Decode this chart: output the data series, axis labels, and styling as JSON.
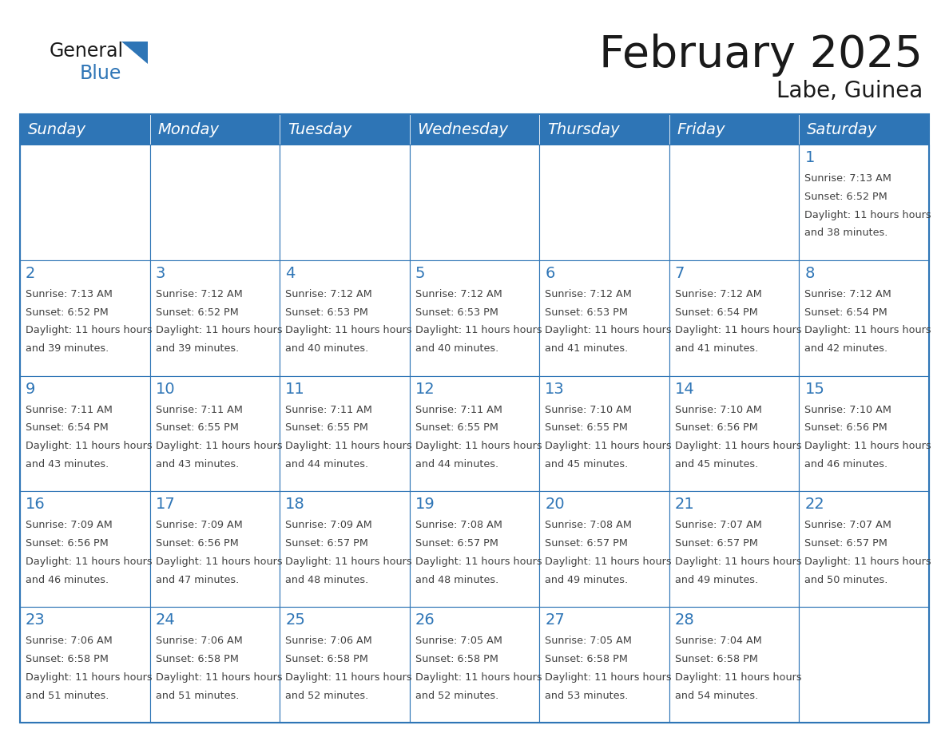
{
  "title": "February 2025",
  "subtitle": "Labe, Guinea",
  "days_of_week": [
    "Sunday",
    "Monday",
    "Tuesday",
    "Wednesday",
    "Thursday",
    "Friday",
    "Saturday"
  ],
  "header_bg": "#2E75B6",
  "header_text": "#FFFFFF",
  "cell_bg": "#FFFFFF",
  "border_color": "#2E75B6",
  "day_number_color": "#2E75B6",
  "detail_color": "#404040",
  "title_color": "#1a1a1a",
  "logo_text_color": "#1a1a1a",
  "logo_blue_color": "#2E75B6",
  "calendar_data": [
    [
      null,
      null,
      null,
      null,
      null,
      null,
      {
        "day": 1,
        "sunrise": "7:13 AM",
        "sunset": "6:52 PM",
        "daylight": "11 hours and 38 minutes"
      }
    ],
    [
      {
        "day": 2,
        "sunrise": "7:13 AM",
        "sunset": "6:52 PM",
        "daylight": "11 hours and 39 minutes"
      },
      {
        "day": 3,
        "sunrise": "7:12 AM",
        "sunset": "6:52 PM",
        "daylight": "11 hours and 39 minutes"
      },
      {
        "day": 4,
        "sunrise": "7:12 AM",
        "sunset": "6:53 PM",
        "daylight": "11 hours and 40 minutes"
      },
      {
        "day": 5,
        "sunrise": "7:12 AM",
        "sunset": "6:53 PM",
        "daylight": "11 hours and 40 minutes"
      },
      {
        "day": 6,
        "sunrise": "7:12 AM",
        "sunset": "6:53 PM",
        "daylight": "11 hours and 41 minutes"
      },
      {
        "day": 7,
        "sunrise": "7:12 AM",
        "sunset": "6:54 PM",
        "daylight": "11 hours and 41 minutes"
      },
      {
        "day": 8,
        "sunrise": "7:12 AM",
        "sunset": "6:54 PM",
        "daylight": "11 hours and 42 minutes"
      }
    ],
    [
      {
        "day": 9,
        "sunrise": "7:11 AM",
        "sunset": "6:54 PM",
        "daylight": "11 hours and 43 minutes"
      },
      {
        "day": 10,
        "sunrise": "7:11 AM",
        "sunset": "6:55 PM",
        "daylight": "11 hours and 43 minutes"
      },
      {
        "day": 11,
        "sunrise": "7:11 AM",
        "sunset": "6:55 PM",
        "daylight": "11 hours and 44 minutes"
      },
      {
        "day": 12,
        "sunrise": "7:11 AM",
        "sunset": "6:55 PM",
        "daylight": "11 hours and 44 minutes"
      },
      {
        "day": 13,
        "sunrise": "7:10 AM",
        "sunset": "6:55 PM",
        "daylight": "11 hours and 45 minutes"
      },
      {
        "day": 14,
        "sunrise": "7:10 AM",
        "sunset": "6:56 PM",
        "daylight": "11 hours and 45 minutes"
      },
      {
        "day": 15,
        "sunrise": "7:10 AM",
        "sunset": "6:56 PM",
        "daylight": "11 hours and 46 minutes"
      }
    ],
    [
      {
        "day": 16,
        "sunrise": "7:09 AM",
        "sunset": "6:56 PM",
        "daylight": "11 hours and 46 minutes"
      },
      {
        "day": 17,
        "sunrise": "7:09 AM",
        "sunset": "6:56 PM",
        "daylight": "11 hours and 47 minutes"
      },
      {
        "day": 18,
        "sunrise": "7:09 AM",
        "sunset": "6:57 PM",
        "daylight": "11 hours and 48 minutes"
      },
      {
        "day": 19,
        "sunrise": "7:08 AM",
        "sunset": "6:57 PM",
        "daylight": "11 hours and 48 minutes"
      },
      {
        "day": 20,
        "sunrise": "7:08 AM",
        "sunset": "6:57 PM",
        "daylight": "11 hours and 49 minutes"
      },
      {
        "day": 21,
        "sunrise": "7:07 AM",
        "sunset": "6:57 PM",
        "daylight": "11 hours and 49 minutes"
      },
      {
        "day": 22,
        "sunrise": "7:07 AM",
        "sunset": "6:57 PM",
        "daylight": "11 hours and 50 minutes"
      }
    ],
    [
      {
        "day": 23,
        "sunrise": "7:06 AM",
        "sunset": "6:58 PM",
        "daylight": "11 hours and 51 minutes"
      },
      {
        "day": 24,
        "sunrise": "7:06 AM",
        "sunset": "6:58 PM",
        "daylight": "11 hours and 51 minutes"
      },
      {
        "day": 25,
        "sunrise": "7:06 AM",
        "sunset": "6:58 PM",
        "daylight": "11 hours and 52 minutes"
      },
      {
        "day": 26,
        "sunrise": "7:05 AM",
        "sunset": "6:58 PM",
        "daylight": "11 hours and 52 minutes"
      },
      {
        "day": 27,
        "sunrise": "7:05 AM",
        "sunset": "6:58 PM",
        "daylight": "11 hours and 53 minutes"
      },
      {
        "day": 28,
        "sunrise": "7:04 AM",
        "sunset": "6:58 PM",
        "daylight": "11 hours and 54 minutes"
      },
      null
    ]
  ]
}
